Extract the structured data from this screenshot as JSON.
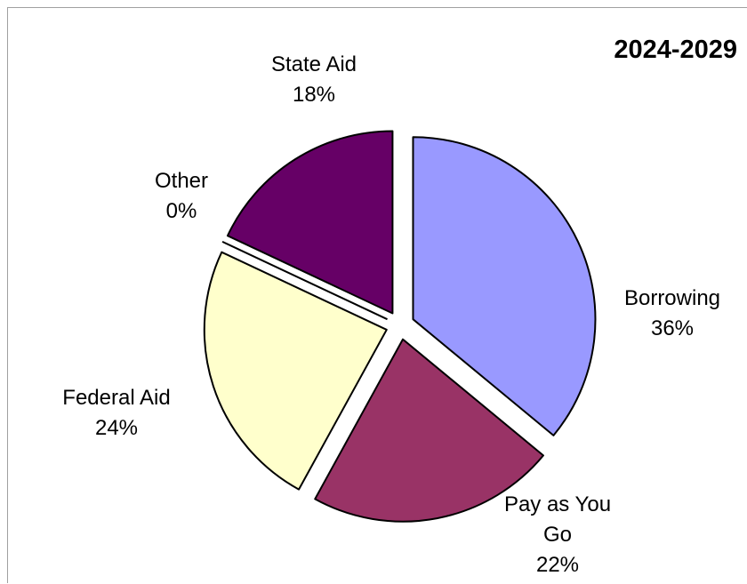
{
  "chart_data": {
    "type": "pie",
    "title": "2024-2029",
    "slices": [
      {
        "label": "Borrowing",
        "percent_label": "36%",
        "value": 36,
        "color": "#9999ff"
      },
      {
        "label": "Pay as You Go",
        "percent_label": "22%",
        "value": 22,
        "color": "#993366"
      },
      {
        "label": "Federal Aid",
        "percent_label": "24%",
        "value": 24,
        "color": "#ffffcc"
      },
      {
        "label": "Other",
        "percent_label": "0%",
        "value": 0,
        "color": "#ffffff"
      },
      {
        "label": "State Aid",
        "percent_label": "18%",
        "value": 18,
        "color": "#660066"
      }
    ],
    "legend": "none"
  }
}
